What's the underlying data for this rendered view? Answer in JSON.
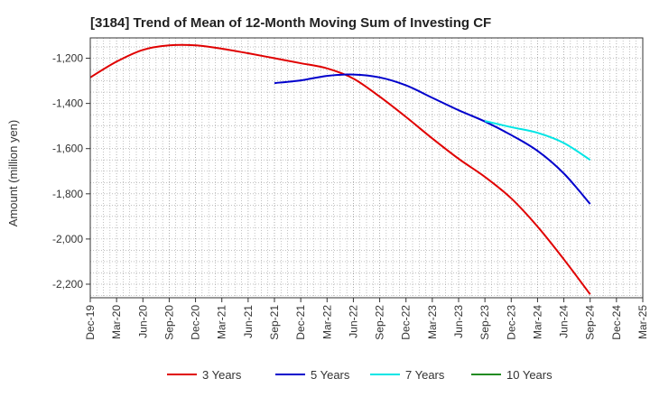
{
  "chart_data": {
    "type": "line",
    "title": "[3184]  Trend of Mean of 12-Month Moving Sum of Investing CF",
    "xlabel": "",
    "ylabel": "Amount (million yen)",
    "ylim": [
      -2260,
      -1110
    ],
    "yticks": [
      -1200,
      -1400,
      -1600,
      -1800,
      -2000,
      -2200
    ],
    "ytick_labels": [
      "-1,200",
      "-1,400",
      "-1,600",
      "-1,800",
      "-2,000",
      "-2,200"
    ],
    "categories": [
      "Dec-19",
      "Mar-20",
      "Jun-20",
      "Sep-20",
      "Dec-20",
      "Mar-21",
      "Jun-21",
      "Sep-21",
      "Dec-21",
      "Mar-22",
      "Jun-22",
      "Sep-22",
      "Dec-22",
      "Mar-23",
      "Jun-23",
      "Sep-23",
      "Dec-23",
      "Mar-24",
      "Jun-24",
      "Sep-24",
      "Dec-24",
      "Mar-25"
    ],
    "series": [
      {
        "name": "3 Years",
        "color": "#e00000",
        "values": [
          -1285,
          -1215,
          -1163,
          -1143,
          -1143,
          -1158,
          -1178,
          -1200,
          -1222,
          -1245,
          -1290,
          -1370,
          -1460,
          -1555,
          -1645,
          -1725,
          -1820,
          -1945,
          -2090,
          -2245,
          null,
          null
        ]
      },
      {
        "name": "5 Years",
        "color": "#0000cc",
        "values": [
          null,
          null,
          null,
          null,
          null,
          null,
          null,
          -1310,
          -1298,
          -1278,
          -1272,
          -1285,
          -1320,
          -1375,
          -1430,
          -1480,
          -1540,
          -1610,
          -1710,
          -1845,
          null,
          null
        ]
      },
      {
        "name": "7 Years",
        "color": "#00e5e5",
        "values": [
          null,
          null,
          null,
          null,
          null,
          null,
          null,
          null,
          null,
          null,
          null,
          null,
          null,
          null,
          null,
          -1478,
          -1505,
          -1530,
          -1575,
          -1650,
          null,
          null
        ]
      },
      {
        "name": "10 Years",
        "color": "#228b22",
        "values": [
          null,
          null,
          null,
          null,
          null,
          null,
          null,
          null,
          null,
          null,
          null,
          null,
          null,
          null,
          null,
          null,
          null,
          null,
          null,
          null,
          null,
          null
        ]
      }
    ],
    "grid": true,
    "legend_position": "bottom"
  }
}
